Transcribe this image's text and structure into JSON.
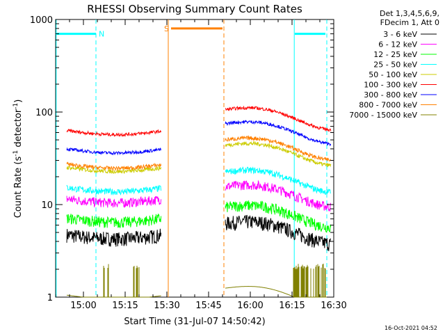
{
  "chart_data": {
    "type": "line",
    "title": "RHESSI Observing Summary Count Rates",
    "xlabel": "Start Time (31-Jul-07 14:50:42)",
    "ylabel": "Count Rate (s^-1 detector^-1)",
    "ylabel_parts": {
      "main": "Count Rate (s",
      "sup1": "-1",
      "mid": " detector",
      "sup2": "-1",
      "end": ")"
    },
    "yscale": "log",
    "ylim": [
      1,
      1000
    ],
    "xlim_min": [
      890,
      990
    ],
    "x_ticks": [
      {
        "min": 900,
        "label": "15:00"
      },
      {
        "min": 915,
        "label": "15:15"
      },
      {
        "min": 930,
        "label": "15:30"
      },
      {
        "min": 945,
        "label": "15:45"
      },
      {
        "min": 960,
        "label": "16:00"
      },
      {
        "min": 975,
        "label": "16:15"
      },
      {
        "min": 990,
        "label": "16:30"
      }
    ],
    "y_ticks": [
      {
        "value": 1,
        "label": "1"
      },
      {
        "value": 10,
        "label": "10"
      },
      {
        "value": 100,
        "label": "100"
      },
      {
        "value": 1000,
        "label": "1000"
      }
    ],
    "legend_header": [
      "Det 1,3,4,5,6,9,",
      "FDecim 1, Att 0"
    ],
    "series": [
      {
        "name": "3 - 6 keV",
        "color": "#000000",
        "pre": 4.5,
        "post": 5.0,
        "noise": 0.18
      },
      {
        "name": "6 - 12 keV",
        "color": "#ff00ff",
        "pre": 11.0,
        "post": 12.5,
        "noise": 0.12
      },
      {
        "name": "12 - 25 keV",
        "color": "#00ff00",
        "pre": 6.8,
        "post": 7.5,
        "noise": 0.14
      },
      {
        "name": "25 - 50 keV",
        "color": "#00ffff",
        "pre": 14.5,
        "post": 18.0,
        "noise": 0.08
      },
      {
        "name": "50 - 100 keV",
        "color": "#cccc00",
        "pre": 24.0,
        "post": 35.0,
        "noise": 0.05
      },
      {
        "name": "100 - 300 keV",
        "color": "#ff0000",
        "pre": 60.0,
        "post": 85.0,
        "noise": 0.04
      },
      {
        "name": "300 - 800 keV",
        "color": "#0000ff",
        "pre": 38.0,
        "post": 60.0,
        "noise": 0.04
      },
      {
        "name": "800 - 7000 keV",
        "color": "#ff8000",
        "pre": 26.0,
        "post": 40.0,
        "noise": 0.05
      },
      {
        "name": "7000 - 15000 keV",
        "color": "#808000",
        "pre": 1.0,
        "post": 1.0,
        "noise": 0.0
      }
    ],
    "flags": [
      {
        "label": "N",
        "color": "#00ffff",
        "start_min": 890,
        "end_min": 904.5,
        "level": 700
      },
      {
        "label": "S",
        "color": "#ff8000",
        "start_min": 931.5,
        "end_min": 950,
        "level": 800
      },
      {
        "label": "",
        "color": "#00ffff",
        "start_min": 976,
        "end_min": 987,
        "level": 700
      }
    ],
    "vlines": [
      {
        "min": 890.2,
        "color": "#00ffff",
        "dash": false
      },
      {
        "min": 904.5,
        "color": "#00ffff",
        "dash": true
      },
      {
        "min": 930.5,
        "color": "#ff8000",
        "dash": false
      },
      {
        "min": 950.5,
        "color": "#ff8000",
        "dash": true
      },
      {
        "min": 975.8,
        "color": "#00ffff",
        "dash": false
      },
      {
        "min": 987.5,
        "color": "#00ffff",
        "dash": true
      }
    ],
    "data_gap_min": [
      928,
      951
    ],
    "date_stamp": "16-Oct-2021 04:52"
  }
}
